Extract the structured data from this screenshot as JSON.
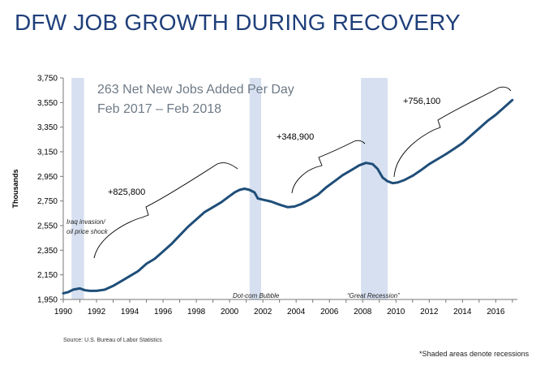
{
  "title": "DFW JOB GROWTH DURING RECOVERY",
  "source": "Source: U.S. Bureau of Labor Statistics",
  "footnote": "*Shaded areas denote recessions",
  "chart_data": {
    "type": "line",
    "ylabel": "Thousands",
    "xlim": [
      1990,
      2017.3
    ],
    "ylim": [
      1950,
      3750
    ],
    "x_ticks": [
      1990,
      1992,
      1994,
      1996,
      1998,
      2000,
      2002,
      2004,
      2006,
      2008,
      2010,
      2012,
      2014,
      2016
    ],
    "y_ticks": [
      1950,
      2150,
      2350,
      2550,
      2750,
      2950,
      3150,
      3350,
      3550,
      3750
    ],
    "x_tick_labels": [
      "1990",
      "1992",
      "1994",
      "1996",
      "1998",
      "2000",
      "2002",
      "2004",
      "2006",
      "2008",
      "2010",
      "2012",
      "2014",
      "2016"
    ],
    "y_tick_labels": [
      "1,950",
      "2,150",
      "2,350",
      "2,550",
      "2,750",
      "2,950",
      "3,150",
      "3,350",
      "3,550",
      "3,750"
    ],
    "grid": false,
    "line_color": "#1f4e79",
    "shade_color": "#d6e0f0",
    "recessions": [
      {
        "start": 1990.5,
        "end": 1991.25
      },
      {
        "start": 2001.2,
        "end": 2001.9
      },
      {
        "start": 2007.9,
        "end": 2009.5
      }
    ],
    "series": [
      {
        "x": [
          1990.0,
          1990.3,
          1990.6,
          1991.0,
          1991.3,
          1991.6,
          1992.0,
          1992.5,
          1993.0,
          1993.5,
          1994.0,
          1994.5,
          1995.0,
          1995.5,
          1996.0,
          1996.5,
          1997.0,
          1997.5,
          1998.0,
          1998.5,
          1999.0,
          1999.5,
          2000.0,
          2000.3,
          2000.6,
          2000.9,
          2001.2,
          2001.5,
          2001.7,
          2002.0,
          2002.5,
          2003.0,
          2003.5,
          2003.9,
          2004.3,
          2004.8,
          2005.3,
          2005.8,
          2006.3,
          2006.8,
          2007.3,
          2007.8,
          2008.2,
          2008.6,
          2008.9,
          2009.2,
          2009.5,
          2009.8,
          2010.1,
          2010.5,
          2011.0,
          2011.5,
          2012.0,
          2012.5,
          2013.0,
          2013.5,
          2014.0,
          2014.5,
          2015.0,
          2015.5,
          2016.0,
          2016.5,
          2017.0
        ],
        "y": [
          2000,
          2010,
          2030,
          2040,
          2025,
          2020,
          2020,
          2030,
          2060,
          2100,
          2140,
          2180,
          2240,
          2280,
          2340,
          2400,
          2470,
          2540,
          2600,
          2660,
          2700,
          2740,
          2790,
          2820,
          2840,
          2850,
          2840,
          2820,
          2770,
          2760,
          2745,
          2720,
          2700,
          2705,
          2725,
          2760,
          2800,
          2860,
          2910,
          2960,
          3000,
          3040,
          3060,
          3050,
          3010,
          2940,
          2910,
          2895,
          2900,
          2920,
          2955,
          3000,
          3050,
          3090,
          3130,
          3175,
          3220,
          3280,
          3340,
          3400,
          3450,
          3510,
          3570
        ]
      }
    ],
    "annotations": [
      {
        "text": "263 Net New Jobs Added Per Day",
        "style": "headline"
      },
      {
        "text": "Feb 2017 – Feb 2018",
        "style": "headline"
      },
      {
        "text": "+825,800",
        "style": "label"
      },
      {
        "text": "+348,900",
        "style": "label"
      },
      {
        "text": "+756,100",
        "style": "label"
      },
      {
        "text": "Iraq invasion/",
        "style": "italic"
      },
      {
        "text": "oil price shock",
        "style": "italic"
      },
      {
        "text": "Dot-com Bubble",
        "style": "italic"
      },
      {
        "text": "“Great Recession”",
        "style": "italic"
      }
    ]
  }
}
